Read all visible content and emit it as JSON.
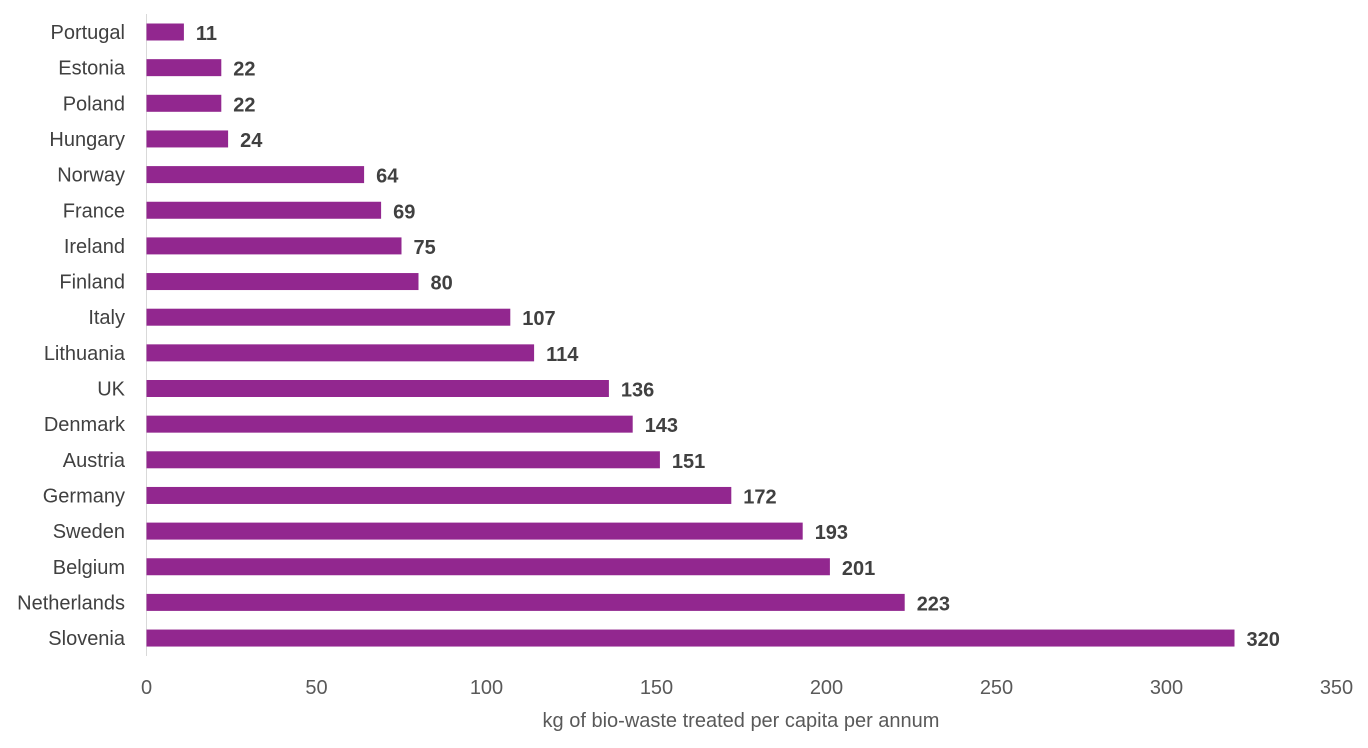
{
  "chart_data": {
    "type": "bar",
    "orientation": "horizontal",
    "categories": [
      "Portugal",
      "Estonia",
      "Poland",
      "Hungary",
      "Norway",
      "France",
      "Ireland",
      "Finland",
      "Italy",
      "Lithuania",
      "UK",
      "Denmark",
      "Austria",
      "Germany",
      "Sweden",
      "Belgium",
      "Netherlands",
      "Slovenia"
    ],
    "values": [
      11,
      22,
      22,
      24,
      64,
      69,
      75,
      80,
      107,
      114,
      136,
      143,
      151,
      172,
      193,
      201,
      223,
      320
    ],
    "data_labels": [
      "11",
      "22",
      "22",
      "24",
      "64",
      "69",
      "75",
      "80",
      "107",
      "114",
      "136",
      "143",
      "151",
      "172",
      "193",
      "201",
      "223",
      "320"
    ],
    "xlabel": "kg of bio-waste treated per capita per annum",
    "ylabel": "",
    "xlim": [
      0,
      350
    ],
    "xticks": [
      "0",
      "50",
      "100",
      "150",
      "200",
      "250",
      "300",
      "350"
    ],
    "grid": false,
    "legend": "none",
    "bar_color": "#92278F"
  }
}
